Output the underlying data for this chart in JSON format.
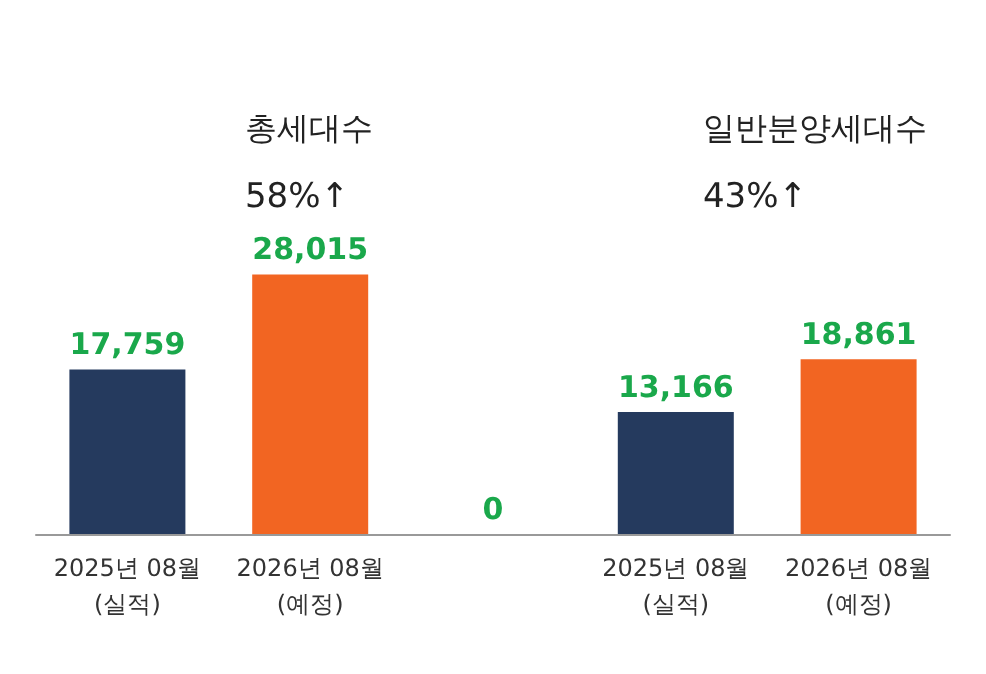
{
  "chart_data": {
    "type": "bar",
    "categories": [
      "2025년 08월\n(실적)",
      "2026년 08월\n(예정)",
      null,
      "2025년 08월\n(실적)",
      "2026년 08월\n(예정)"
    ],
    "values": [
      17759,
      28015,
      0,
      13166,
      18861
    ],
    "value_labels": [
      "17,759",
      "28,015",
      "0",
      "13,166",
      "18,861"
    ],
    "colors": [
      "#253a5e",
      "#f26522",
      "#253a5e",
      "#253a5e",
      "#f26522"
    ],
    "annotations": [
      "총세대수",
      "58%↑",
      "일반분양세대수",
      "43%↑"
    ]
  }
}
